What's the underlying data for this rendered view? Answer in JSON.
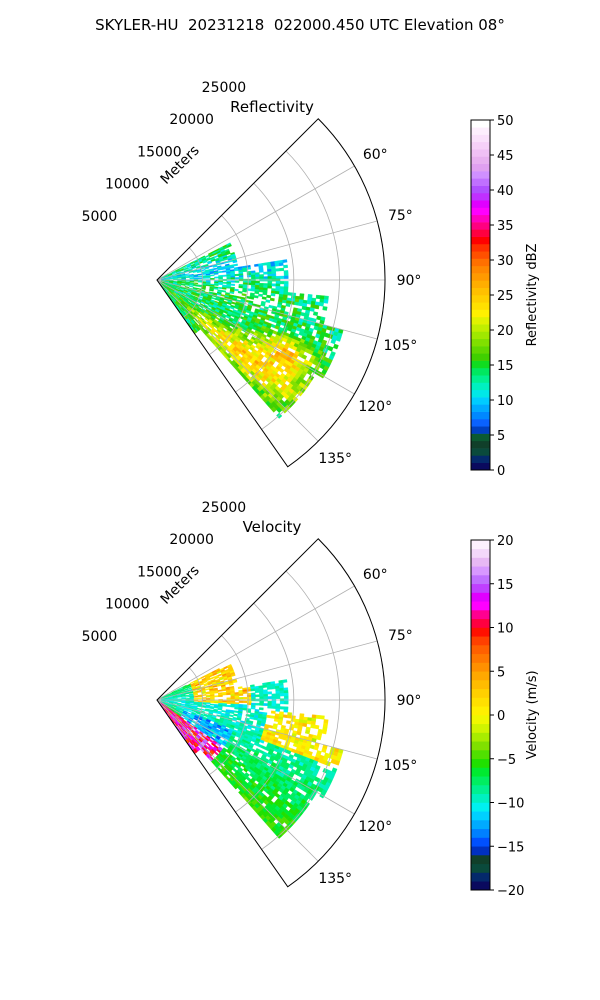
{
  "title": "SKYLER-HU  20231218  022000.450 UTC Elevation 08°",
  "chart_data": [
    {
      "type": "polar-ppi",
      "field": "reflectivity",
      "title": "Reflectivity",
      "range_label": "Meters",
      "range_ticks": [
        5000,
        10000,
        15000,
        20000,
        25000
      ],
      "range_tick_labels": [
        "5000",
        "10000",
        "15000",
        "20000",
        "25000"
      ],
      "rmax": 25000,
      "azimuth_span": [
        45,
        145
      ],
      "azimuth_ticks": [
        60,
        75,
        90,
        105,
        120,
        135
      ],
      "azimuth_tick_labels": [
        "60°",
        "75°",
        "90°",
        "105°",
        "120°",
        "135°"
      ],
      "grid": true,
      "colorbar": {
        "label": "Reflectivity dBZ",
        "vmin": 0,
        "vmax": 50,
        "ticks": [
          "0",
          "5",
          "10",
          "15",
          "20",
          "25",
          "30",
          "35",
          "40",
          "45",
          "50"
        ],
        "colors": [
          "#0a0a5e",
          "#04296b",
          "#0a4a3c",
          "#103f2a",
          "#0b5a32",
          "#0040c0",
          "#0a62ff",
          "#0088ff",
          "#00aaff",
          "#00ccff",
          "#00e8e8",
          "#00f0c0",
          "#00f090",
          "#00e860",
          "#10dc20",
          "#40d000",
          "#60d800",
          "#80e000",
          "#a0e800",
          "#c0ee00",
          "#e0f200",
          "#fff000",
          "#ffe000",
          "#ffd000",
          "#ffc000",
          "#ffae00",
          "#ff9a00",
          "#ff8800",
          "#ff7000",
          "#ff5000",
          "#ff3000",
          "#ff0000",
          "#ff0040",
          "#ff0080",
          "#ff00c0",
          "#ff00ff",
          "#e000ff",
          "#c030ff",
          "#b050ff",
          "#c070ff",
          "#d090ff",
          "#e0a0f0",
          "#e8b0f0",
          "#f0c0f5",
          "#f6d0f8",
          "#fae0fb",
          "#fdeefd",
          "#ffffff"
        ]
      }
    },
    {
      "type": "polar-ppi",
      "field": "velocity",
      "title": "Velocity",
      "range_label": "Meters",
      "range_ticks": [
        5000,
        10000,
        15000,
        20000,
        25000
      ],
      "range_tick_labels": [
        "5000",
        "10000",
        "15000",
        "20000",
        "25000"
      ],
      "rmax": 25000,
      "azimuth_span": [
        45,
        145
      ],
      "azimuth_ticks": [
        60,
        75,
        90,
        105,
        120,
        135
      ],
      "azimuth_tick_labels": [
        "60°",
        "75°",
        "90°",
        "105°",
        "120°",
        "135°"
      ],
      "grid": true,
      "colorbar": {
        "label": "Velocity (m/s)",
        "vmin": -20,
        "vmax": 20,
        "ticks": [
          "−20",
          "−15",
          "−10",
          "−5",
          "0",
          "5",
          "10",
          "15",
          "20"
        ],
        "colors": [
          "#0a0a5e",
          "#04296b",
          "#0a4a3c",
          "#103f2a",
          "#0030c0",
          "#0050ff",
          "#0080ff",
          "#00aaff",
          "#00d0ff",
          "#00f0f0",
          "#00f0c0",
          "#00f090",
          "#00ee60",
          "#00ea30",
          "#20e000",
          "#50e000",
          "#80e000",
          "#a8ec00",
          "#d0f400",
          "#f0f800",
          "#fff000",
          "#ffe000",
          "#ffd000",
          "#ffbc00",
          "#ffa800",
          "#ff9000",
          "#ff7800",
          "#ff6000",
          "#ff4000",
          "#ff1000",
          "#ff0040",
          "#ff0090",
          "#ff00ff",
          "#e000ff",
          "#c040ff",
          "#c070ff",
          "#d898ff",
          "#e8b8f4",
          "#f4d8fa",
          "#fdf0fe"
        ]
      }
    }
  ]
}
